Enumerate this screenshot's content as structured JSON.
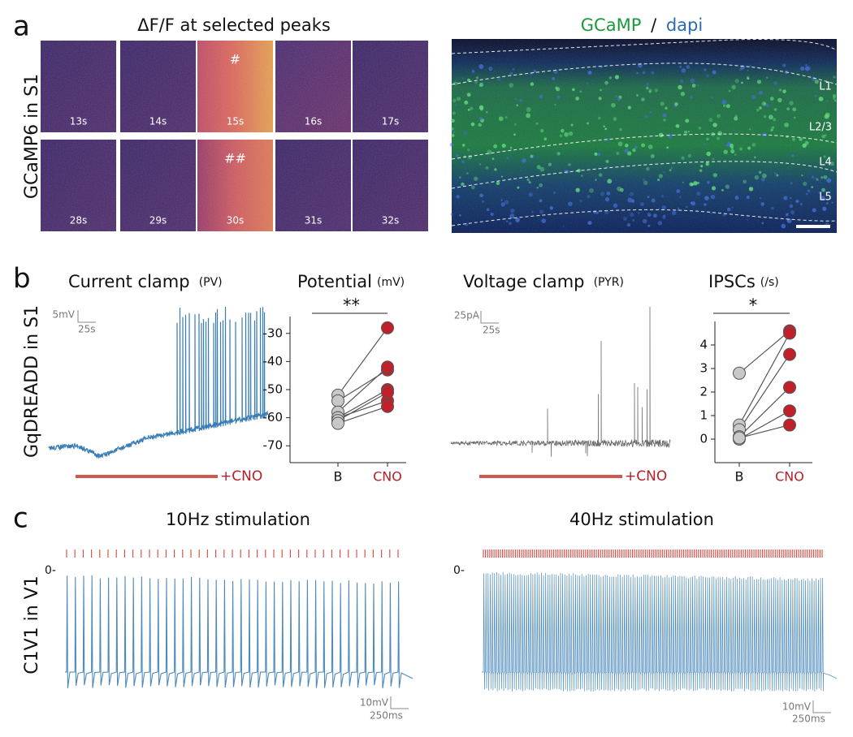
{
  "panel_a": {
    "letter": "a",
    "side_label": "GCaMP6 in S1",
    "title": "ΔF/F at selected peaks",
    "rows": [
      [
        {
          "time": "13s"
        },
        {
          "time": "14s"
        },
        {
          "time": "15s",
          "mark": "#"
        },
        {
          "time": "16s"
        },
        {
          "time": "17s"
        }
      ],
      [
        {
          "time": "28s"
        },
        {
          "time": "29s"
        },
        {
          "time": "30s",
          "mark": "##"
        },
        {
          "time": "31s"
        },
        {
          "time": "32s"
        }
      ]
    ],
    "image_title": {
      "gcamp": "GCaMP",
      "slash": "/",
      "dapi": "dapi"
    },
    "layers": [
      "L1",
      "L2/3",
      "L4",
      "L5"
    ]
  },
  "panel_b": {
    "letter": "b",
    "side_label": "GqDREADD in S1",
    "current_clamp": {
      "title": "Current clamp",
      "cell": "(PV)",
      "scale_y": "5mV",
      "scale_x": "25s",
      "drug": "+CNO"
    },
    "voltage_clamp": {
      "title": "Voltage clamp",
      "cell": "(PYR)",
      "scale_y": "25pA",
      "scale_x": "25s",
      "drug": "+CNO"
    }
  },
  "chart_data": [
    {
      "type": "paired_dot",
      "title": "Potential",
      "unit": "(mV)",
      "significance": "**",
      "series": [
        {
          "name": "B",
          "color": "#c8c8c8",
          "values": [
            -52,
            -54,
            -58,
            -60,
            -60,
            -61,
            -62
          ]
        },
        {
          "name": "CNO",
          "color": "#c0202a",
          "values": [
            -28,
            -43,
            -42,
            -50,
            -54,
            -51,
            -56
          ]
        }
      ],
      "ylim": [
        -76,
        -24
      ],
      "yticks": [
        -30,
        -40,
        -50,
        -60,
        -70
      ]
    },
    {
      "type": "paired_dot",
      "title": "IPSCs",
      "unit": "(/s)",
      "significance": "*",
      "series": [
        {
          "name": "B",
          "color": "#c8c8c8",
          "values": [
            2.8,
            0.6,
            0.4,
            0.1,
            0.0,
            0.05
          ]
        },
        {
          "name": "CNO",
          "color": "#c0202a",
          "values": [
            4.6,
            4.5,
            3.6,
            2.2,
            1.2,
            0.6
          ]
        }
      ],
      "ylim": [
        -1,
        5
      ],
      "yticks": [
        0,
        1,
        2,
        3,
        4
      ]
    }
  ],
  "panel_c": {
    "letter": "c",
    "side_label": "C1V1 in V1",
    "traces": [
      {
        "title": "10Hz stimulation",
        "zero": "0-",
        "scale_y": "10mV",
        "scale_x": "250ms"
      },
      {
        "title": "40Hz stimulation",
        "zero": "0-",
        "scale_y": "10mV",
        "scale_x": "250ms"
      }
    ]
  }
}
